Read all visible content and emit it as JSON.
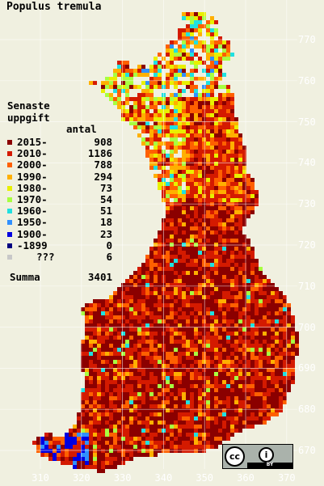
{
  "title": "Populus tremula",
  "legend": {
    "heading_line1": "Senaste",
    "heading_line2": "uppgift",
    "count_header": "antal",
    "rows": [
      {
        "label": "2015-",
        "count": "908",
        "color": "#8b0000"
      },
      {
        "label": "2010-",
        "count": "1186",
        "color": "#d41a00"
      },
      {
        "label": "2000-",
        "count": "788",
        "color": "#ff6000"
      },
      {
        "label": "1990-",
        "count": "294",
        "color": "#ffb000"
      },
      {
        "label": "1980-",
        "count": "73",
        "color": "#e8f000"
      },
      {
        "label": "1970-",
        "count": "54",
        "color": "#a8ff40"
      },
      {
        "label": "1960-",
        "count": "51",
        "color": "#20e0e0"
      },
      {
        "label": "1950-",
        "count": "18",
        "color": "#3090ff"
      },
      {
        "label": "1900-",
        "count": "23",
        "color": "#0000e0"
      },
      {
        "label": "-1899",
        "count": "0",
        "color": "#000080"
      },
      {
        "label": "???",
        "count": "6",
        "color": "#c8c8c8"
      }
    ],
    "total_label": "Summa",
    "total_count": "3401"
  },
  "axes": {
    "y_ticks": [
      "770",
      "760",
      "750",
      "740",
      "730",
      "720",
      "710",
      "700",
      "690",
      "680",
      "670"
    ],
    "x_ticks": [
      "310",
      "320",
      "330",
      "340",
      "350",
      "360",
      "370"
    ]
  },
  "colors": {
    "background": "#f0f0e0",
    "grid": "#ffffff"
  },
  "license": {
    "cc": "cc",
    "by": "BY",
    "icon": "creative-commons-by-icon"
  }
}
